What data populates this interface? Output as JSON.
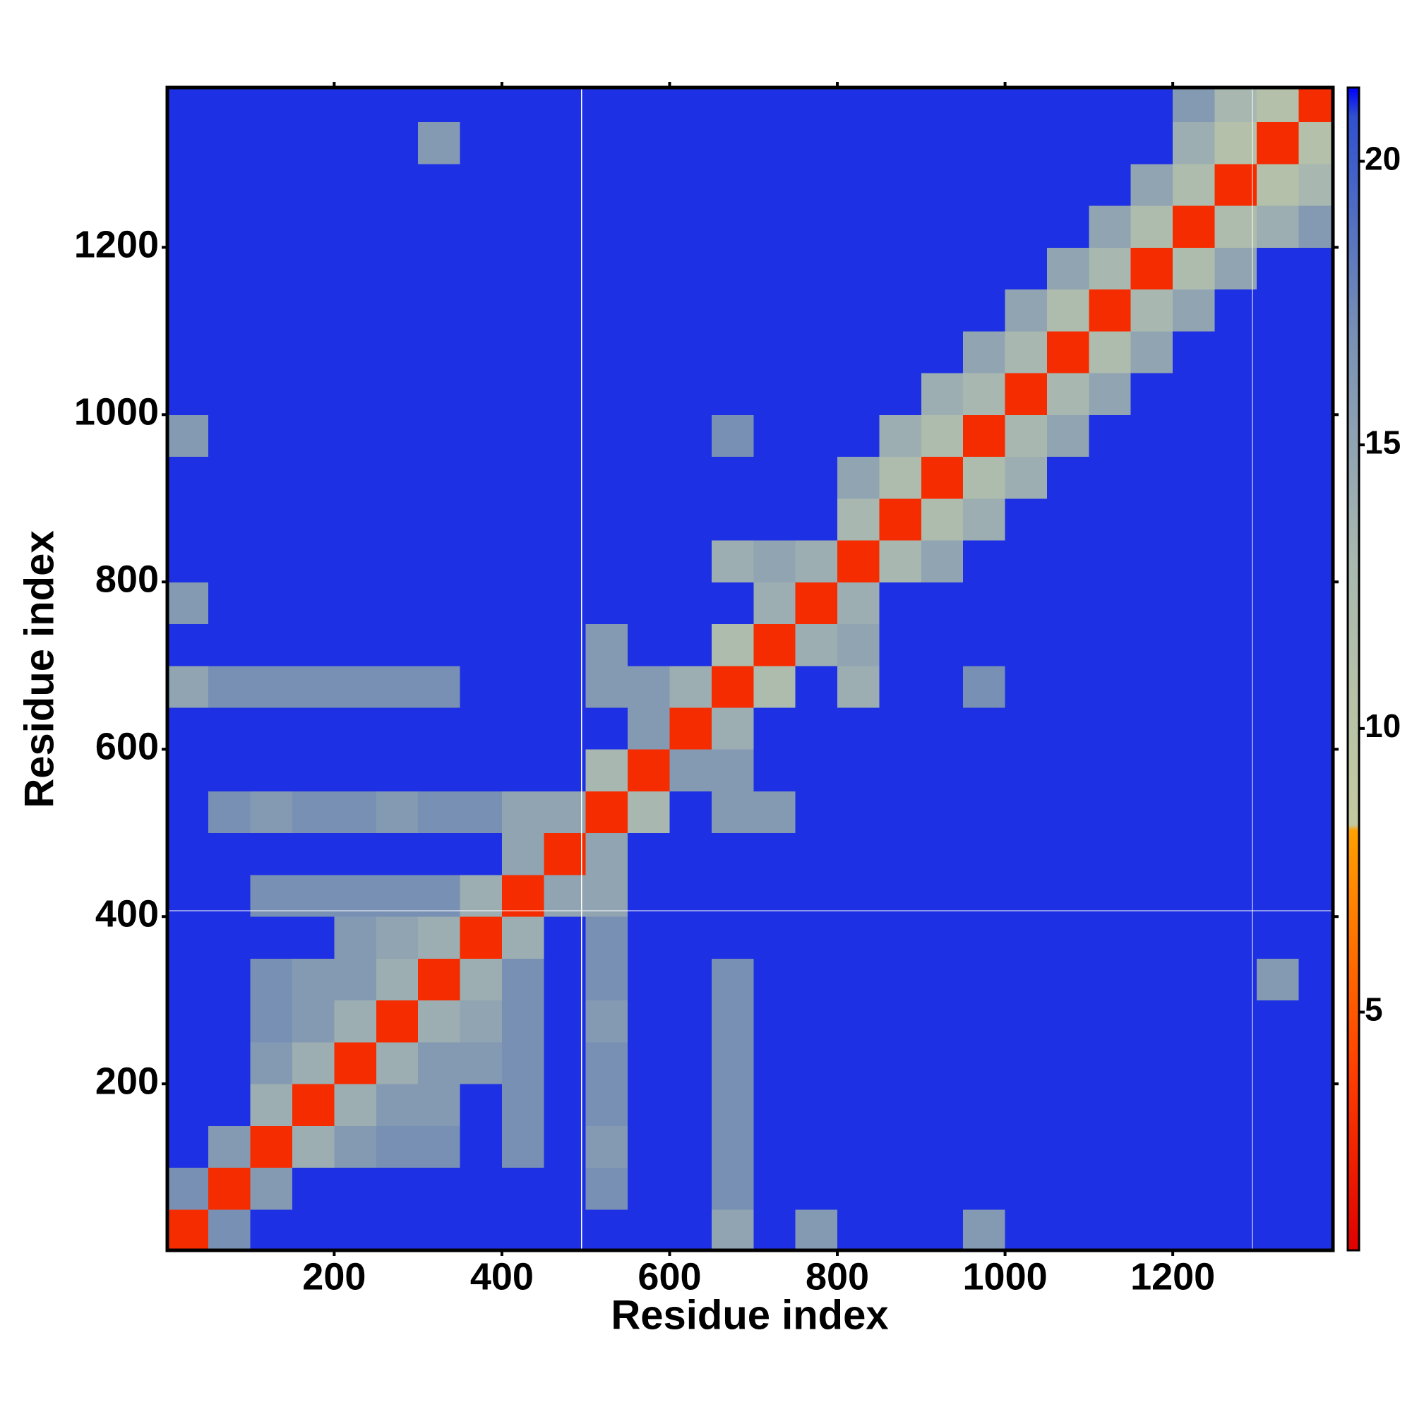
{
  "chart_data": {
    "type": "heatmap",
    "xlabel": "Residue index",
    "ylabel": "Residue index",
    "xlim": [
      1,
      1391
    ],
    "ylim": [
      1,
      1391
    ],
    "xticks": [
      200,
      400,
      600,
      800,
      1000,
      1200
    ],
    "yticks": [
      200,
      400,
      600,
      800,
      1000,
      1200
    ],
    "xbins": [
      0,
      50,
      100,
      150,
      200,
      250,
      300,
      350,
      400,
      450,
      500,
      550,
      600,
      650,
      700,
      750,
      800,
      850,
      900,
      950,
      1000,
      1050,
      1100,
      1150,
      1200,
      1250,
      1300,
      1350,
      1400
    ],
    "ybins": [
      0,
      50,
      100,
      150,
      200,
      250,
      300,
      350,
      400,
      450,
      500,
      550,
      600,
      650,
      700,
      750,
      800,
      850,
      900,
      950,
      1000,
      1050,
      1100,
      1150,
      1200,
      1250,
      1300,
      1350,
      1400
    ],
    "z": [
      [
        3,
        17,
        21,
        21,
        21,
        21,
        21,
        21,
        21,
        21,
        21,
        21,
        21,
        15,
        21,
        16,
        21,
        21,
        21,
        16,
        21,
        21,
        21,
        21,
        21,
        21,
        21,
        21
      ],
      [
        17,
        3,
        16,
        21,
        21,
        21,
        21,
        21,
        21,
        21,
        17,
        21,
        21,
        17,
        21,
        21,
        21,
        21,
        21,
        21,
        21,
        21,
        21,
        21,
        21,
        21,
        21,
        21
      ],
      [
        21,
        16,
        3,
        14,
        16,
        17,
        17,
        21,
        17,
        21,
        16,
        21,
        21,
        17,
        21,
        21,
        21,
        21,
        21,
        21,
        21,
        21,
        21,
        21,
        21,
        21,
        21,
        21
      ],
      [
        21,
        21,
        14,
        3,
        14,
        16,
        16,
        21,
        17,
        21,
        17,
        21,
        21,
        17,
        21,
        21,
        21,
        21,
        21,
        21,
        21,
        21,
        21,
        21,
        21,
        21,
        21,
        21
      ],
      [
        21,
        21,
        16,
        14,
        3,
        14,
        16,
        16,
        17,
        21,
        17,
        21,
        21,
        17,
        21,
        21,
        21,
        21,
        21,
        21,
        21,
        21,
        21,
        21,
        21,
        21,
        21,
        21
      ],
      [
        21,
        21,
        17,
        16,
        14,
        3,
        14,
        15,
        17,
        21,
        16,
        21,
        21,
        17,
        21,
        21,
        21,
        21,
        21,
        21,
        21,
        21,
        21,
        21,
        21,
        21,
        21,
        21
      ],
      [
        21,
        21,
        17,
        16,
        16,
        14,
        3,
        14,
        17,
        21,
        17,
        21,
        21,
        17,
        21,
        21,
        21,
        21,
        21,
        21,
        21,
        21,
        21,
        21,
        21,
        21,
        16,
        21
      ],
      [
        21,
        21,
        21,
        21,
        16,
        15,
        14,
        3,
        14,
        21,
        17,
        21,
        21,
        21,
        21,
        21,
        21,
        21,
        21,
        21,
        21,
        21,
        21,
        21,
        21,
        21,
        21,
        21
      ],
      [
        21,
        21,
        17,
        17,
        17,
        17,
        17,
        14,
        3,
        15,
        15,
        21,
        21,
        21,
        21,
        21,
        21,
        21,
        21,
        21,
        21,
        21,
        21,
        21,
        21,
        21,
        21,
        21
      ],
      [
        21,
        21,
        21,
        21,
        21,
        21,
        21,
        21,
        15,
        3,
        15,
        21,
        21,
        21,
        21,
        21,
        21,
        21,
        21,
        21,
        21,
        21,
        21,
        21,
        21,
        21,
        21,
        21
      ],
      [
        21,
        17,
        16,
        17,
        17,
        16,
        17,
        17,
        15,
        15,
        3,
        13,
        21,
        16,
        16,
        21,
        21,
        21,
        21,
        21,
        21,
        21,
        21,
        21,
        21,
        21,
        21,
        21
      ],
      [
        21,
        21,
        21,
        21,
        21,
        21,
        21,
        21,
        21,
        21,
        13,
        3,
        16,
        16,
        21,
        21,
        21,
        21,
        21,
        21,
        21,
        21,
        21,
        21,
        21,
        21,
        21,
        21
      ],
      [
        21,
        21,
        21,
        21,
        21,
        21,
        21,
        21,
        21,
        21,
        21,
        16,
        3,
        14,
        21,
        21,
        21,
        21,
        21,
        21,
        21,
        21,
        21,
        21,
        21,
        21,
        21,
        21
      ],
      [
        15,
        17,
        17,
        17,
        17,
        17,
        17,
        21,
        21,
        21,
        16,
        16,
        14,
        3,
        12,
        21,
        14,
        21,
        21,
        17,
        21,
        21,
        21,
        21,
        21,
        21,
        21,
        21
      ],
      [
        21,
        21,
        21,
        21,
        21,
        21,
        21,
        21,
        21,
        21,
        16,
        21,
        21,
        12,
        3,
        14,
        15,
        21,
        21,
        21,
        21,
        21,
        21,
        21,
        21,
        21,
        21,
        21
      ],
      [
        16,
        21,
        21,
        21,
        21,
        21,
        21,
        21,
        21,
        21,
        21,
        21,
        21,
        21,
        14,
        3,
        14,
        21,
        21,
        21,
        21,
        21,
        21,
        21,
        21,
        21,
        21,
        21
      ],
      [
        21,
        21,
        21,
        21,
        21,
        21,
        21,
        21,
        21,
        21,
        21,
        21,
        21,
        14,
        15,
        14,
        3,
        13,
        15,
        21,
        21,
        21,
        21,
        21,
        21,
        21,
        21,
        21
      ],
      [
        21,
        21,
        21,
        21,
        21,
        21,
        21,
        21,
        21,
        21,
        21,
        21,
        21,
        21,
        21,
        21,
        13,
        3,
        12,
        14,
        21,
        21,
        21,
        21,
        21,
        21,
        21,
        21
      ],
      [
        21,
        21,
        21,
        21,
        21,
        21,
        21,
        21,
        21,
        21,
        21,
        21,
        21,
        21,
        21,
        21,
        15,
        12,
        3,
        12,
        14,
        21,
        21,
        21,
        21,
        21,
        21,
        21
      ],
      [
        16,
        21,
        21,
        21,
        21,
        21,
        21,
        21,
        21,
        21,
        21,
        21,
        21,
        17,
        21,
        21,
        21,
        14,
        12,
        3,
        13,
        15,
        21,
        21,
        21,
        21,
        21,
        21
      ],
      [
        21,
        21,
        21,
        21,
        21,
        21,
        21,
        21,
        21,
        21,
        21,
        21,
        21,
        21,
        21,
        21,
        21,
        21,
        14,
        13,
        3,
        13,
        15,
        21,
        21,
        21,
        21,
        21
      ],
      [
        21,
        21,
        21,
        21,
        21,
        21,
        21,
        21,
        21,
        21,
        21,
        21,
        21,
        21,
        21,
        21,
        21,
        21,
        21,
        15,
        13,
        3,
        12,
        15,
        21,
        21,
        21,
        21
      ],
      [
        21,
        21,
        21,
        21,
        21,
        21,
        21,
        21,
        21,
        21,
        21,
        21,
        21,
        21,
        21,
        21,
        21,
        21,
        21,
        21,
        15,
        12,
        3,
        13,
        15,
        21,
        21,
        21
      ],
      [
        21,
        21,
        21,
        21,
        21,
        21,
        21,
        21,
        21,
        21,
        21,
        21,
        21,
        21,
        21,
        21,
        21,
        21,
        21,
        21,
        21,
        15,
        13,
        3,
        12,
        15,
        21,
        21
      ],
      [
        21,
        21,
        21,
        21,
        21,
        21,
        21,
        21,
        21,
        21,
        21,
        21,
        21,
        21,
        21,
        21,
        21,
        21,
        21,
        21,
        21,
        21,
        15,
        12,
        3,
        12,
        14,
        16
      ],
      [
        21,
        21,
        21,
        21,
        21,
        21,
        21,
        21,
        21,
        21,
        21,
        21,
        21,
        21,
        21,
        21,
        21,
        21,
        21,
        21,
        21,
        21,
        21,
        15,
        12,
        3,
        11,
        13
      ],
      [
        21,
        21,
        21,
        21,
        21,
        21,
        16,
        21,
        21,
        21,
        21,
        21,
        21,
        21,
        21,
        21,
        21,
        21,
        21,
        21,
        21,
        21,
        21,
        21,
        14,
        11,
        3,
        11
      ],
      [
        21,
        21,
        21,
        21,
        21,
        21,
        21,
        21,
        21,
        21,
        21,
        21,
        21,
        21,
        21,
        21,
        21,
        21,
        21,
        21,
        21,
        21,
        21,
        21,
        16,
        13,
        11,
        3
      ]
    ],
    "vlines": [
      495,
      1295
    ],
    "hlines": [
      407
    ],
    "colorbar": {
      "clim": [
        0.8,
        21.3
      ],
      "ticks": [
        5,
        10,
        15,
        20
      ],
      "colorscale": [
        {
          "value": 0.8,
          "color": "#e00000"
        },
        {
          "value": 4,
          "color": "#ff4000"
        },
        {
          "value": 8.2,
          "color": "#ffa000"
        },
        {
          "value": 8.3,
          "color": "#c4caa0"
        },
        {
          "value": 13,
          "color": "#a8b8b0"
        },
        {
          "value": 17,
          "color": "#7890b4"
        },
        {
          "value": 20.8,
          "color": "#3050d0"
        },
        {
          "value": 21.3,
          "color": "#0000ff"
        }
      ]
    }
  }
}
